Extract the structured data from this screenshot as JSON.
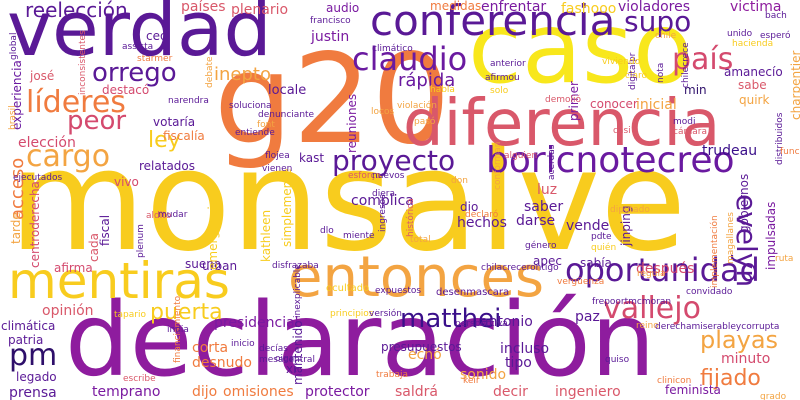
{
  "words": [
    {
      "text": "monsalve",
      "color": "#F8CC1E"
    },
    {
      "text": "declaración",
      "color": "#8E1C9E"
    },
    {
      "text": "g20",
      "color": "#F07B3F"
    },
    {
      "text": "caso",
      "color": "#F8E71C"
    },
    {
      "text": "verdad",
      "color": "#5A1996"
    },
    {
      "text": "diferencia",
      "color": "#D9586A"
    },
    {
      "text": "entonces",
      "color": "#F3A442"
    },
    {
      "text": "conferencia",
      "color": "#5A1996"
    },
    {
      "text": "mentiras",
      "color": "#F8CC1E"
    },
    {
      "text": "boricnotecreo",
      "color": "#6A1AA0"
    },
    {
      "text": "oportunidad",
      "color": "#5A1996"
    },
    {
      "text": "vallejo",
      "color": "#D44A6E"
    },
    {
      "text": "claudio",
      "color": "#6A1AA0"
    },
    {
      "text": "proyecto",
      "color": "#5A1996"
    },
    {
      "text": "líderes",
      "color": "#F07B3F"
    },
    {
      "text": "cargo",
      "color": "#F3A442"
    },
    {
      "text": "país",
      "color": "#D44A6E"
    },
    {
      "text": "orrego",
      "color": "#5A1996"
    },
    {
      "text": "peor",
      "color": "#D44A6E"
    },
    {
      "text": "supo",
      "color": "#5A1996"
    },
    {
      "text": "matthei",
      "color": "#3A0F8A"
    },
    {
      "text": "evelyn",
      "color": "#5A1996"
    },
    {
      "text": "puerta",
      "color": "#F8CC1E"
    },
    {
      "text": "playas",
      "color": "#F3A442"
    },
    {
      "text": "pm",
      "color": "#2E0F6A"
    },
    {
      "text": "ley",
      "color": "#F8CC1E"
    },
    {
      "text": "fijado",
      "color": "#F07B3F"
    },
    {
      "text": "reelección",
      "color": "#5A1996"
    },
    {
      "text": "rápida",
      "color": "#6A1AA0"
    },
    {
      "text": "inepto",
      "color": "#F3A442"
    },
    {
      "text": "acceso",
      "color": "#F07B3F"
    },
    {
      "text": "países",
      "color": "#D9586A"
    },
    {
      "text": "plenario",
      "color": "#D9586A"
    },
    {
      "text": "audio",
      "color": "#7A1AA0"
    },
    {
      "text": "enfrentar",
      "color": "#7A1AA0"
    },
    {
      "text": "fashooo",
      "color": "#F8CC1E"
    },
    {
      "text": "violadores",
      "color": "#7A1AA0"
    },
    {
      "text": "victima",
      "color": "#8E1C9E"
    },
    {
      "text": "justin",
      "color": "#7A1AA0"
    },
    {
      "text": "medidas",
      "color": "#F07B3F"
    },
    {
      "text": "ceo",
      "color": "#5A1996"
    },
    {
      "text": "josé",
      "color": "#D9586A"
    },
    {
      "text": "experiencia",
      "color": "#6A1AA0"
    },
    {
      "text": "destacó",
      "color": "#D44A6E"
    },
    {
      "text": "votaría",
      "color": "#5A1996"
    },
    {
      "text": "fiscalía",
      "color": "#F07B3F"
    },
    {
      "text": "locale",
      "color": "#5A1996"
    },
    {
      "text": "reuniones",
      "color": "#7A1AA0"
    },
    {
      "text": "primer",
      "color": "#7A1AA0"
    },
    {
      "text": "conocer",
      "color": "#D44A6E"
    },
    {
      "text": "inicial",
      "color": "#F3A442"
    },
    {
      "text": "min",
      "color": "#2E0F6A"
    },
    {
      "text": "sabe",
      "color": "#D9586A"
    },
    {
      "text": "quirk",
      "color": "#F3A442"
    },
    {
      "text": "amanecío",
      "color": "#5A1996"
    },
    {
      "text": "trudeau",
      "color": "#3A0F8A"
    },
    {
      "text": "elección",
      "color": "#D44A6E"
    },
    {
      "text": "kast",
      "color": "#5A1996"
    },
    {
      "text": "relatados",
      "color": "#5A1996"
    },
    {
      "text": "vivo",
      "color": "#D44A6E"
    },
    {
      "text": "fiscal",
      "color": "#5A1996"
    },
    {
      "text": "complica",
      "color": "#5A1996"
    },
    {
      "text": "dio",
      "color": "#5A1996"
    },
    {
      "text": "hechos",
      "color": "#5A1996"
    },
    {
      "text": "darse",
      "color": "#5A1996"
    },
    {
      "text": "saber",
      "color": "#5A1996"
    },
    {
      "text": "luz",
      "color": "#D9586A"
    },
    {
      "text": "vende",
      "color": "#5A1996"
    },
    {
      "text": "jinping",
      "color": "#5A1996"
    },
    {
      "text": "gobiernos",
      "color": "#5A1996"
    },
    {
      "text": "impulsadas",
      "color": "#7A1AA0"
    },
    {
      "text": "centroderecha",
      "color": "#D44A6E"
    },
    {
      "text": "tarde",
      "color": "#F3A442"
    },
    {
      "text": "cada",
      "color": "#D9586A"
    },
    {
      "text": "afirma",
      "color": "#D44A6E"
    },
    {
      "text": "suena",
      "color": "#5A1996"
    },
    {
      "text": "urban",
      "color": "#5A1996"
    },
    {
      "text": "kathleen",
      "color": "#F8CC1E"
    },
    {
      "text": "simplemente",
      "color": "#F8CC1E"
    },
    {
      "text": "emergencia",
      "color": "#F8CC1E"
    },
    {
      "text": "sabía",
      "color": "#5A1996"
    },
    {
      "text": "después",
      "color": "#D44A6E"
    },
    {
      "text": "apec",
      "color": "#5A1996"
    },
    {
      "text": "opinión",
      "color": "#D9586A"
    },
    {
      "text": "presidencial",
      "color": "#7A1AA0"
    },
    {
      "text": "antonio",
      "color": "#5A1996"
    },
    {
      "text": "paz",
      "color": "#5A1996"
    },
    {
      "text": "climática",
      "color": "#5A1996"
    },
    {
      "text": "patria",
      "color": "#5A1996"
    },
    {
      "text": "corta",
      "color": "#F07B3F"
    },
    {
      "text": "incluso",
      "color": "#5A1996"
    },
    {
      "text": "tipo",
      "color": "#5A1996"
    },
    {
      "text": "legado",
      "color": "#5A1996"
    },
    {
      "text": "desnudo",
      "color": "#F07B3F"
    },
    {
      "text": "echó",
      "color": "#F3A442"
    },
    {
      "text": "sonido",
      "color": "#F3A442"
    },
    {
      "text": "minuto",
      "color": "#D44A6E"
    },
    {
      "text": "prensa",
      "color": "#5A1996"
    },
    {
      "text": "temprano",
      "color": "#7A1AA0"
    },
    {
      "text": "dijo",
      "color": "#F07B3F"
    },
    {
      "text": "omisiones",
      "color": "#F07B3F"
    },
    {
      "text": "protector",
      "color": "#7A1AA0"
    },
    {
      "text": "saldrá",
      "color": "#D9586A"
    },
    {
      "text": "decir",
      "color": "#D9586A"
    },
    {
      "text": "ingeniero",
      "color": "#D9586A"
    },
    {
      "text": "feminista",
      "color": "#7A1AA0"
    },
    {
      "text": "mantenido",
      "color": "#5A1996"
    },
    {
      "text": "xi",
      "color": "#5A1996"
    },
    {
      "text": "presupuestos",
      "color": "#5A1996"
    },
    {
      "text": "desenmascara",
      "color": "#5A1996"
    },
    {
      "text": "ocultado",
      "color": "#F8CC1E"
    },
    {
      "text": "francisco",
      "color": "#5A1996"
    },
    {
      "text": "anterior",
      "color": "#5A1996"
    },
    {
      "text": "afirmou",
      "color": "#5A1996"
    },
    {
      "text": "solo",
      "color": "#F8CC1E"
    },
    {
      "text": "claro",
      "color": "#F8CC1E"
    },
    {
      "text": "quiso",
      "color": "#5A1996"
    },
    {
      "text": "reino",
      "color": "#F3A442"
    },
    {
      "text": "diputado",
      "color": "#F3A442"
    },
    {
      "text": "pdte",
      "color": "#5A1996"
    },
    {
      "text": "frepoortmcmoran",
      "color": "#5A1996"
    },
    {
      "text": "derechamiserableycorrupta",
      "color": "#5A1996"
    },
    {
      "text": "convidado",
      "color": "#5A1996"
    },
    {
      "text": "unido",
      "color": "#5A1996"
    },
    {
      "text": "charpentier",
      "color": "#F3A442"
    },
    {
      "text": "digitalpr",
      "color": "#5A1996"
    },
    {
      "text": "nota",
      "color": "#5A1996"
    },
    {
      "text": "modi",
      "color": "#5A1996"
    },
    {
      "text": "cámara",
      "color": "#D9586A"
    },
    {
      "text": "casi",
      "color": "#D9586A"
    },
    {
      "text": "inconsistentes",
      "color": "#D9586A"
    },
    {
      "text": "assista",
      "color": "#5A1996"
    },
    {
      "text": "narendra",
      "color": "#5A1996"
    },
    {
      "text": "soluciona",
      "color": "#5A1996"
    },
    {
      "text": "entiende",
      "color": "#5A1996"
    },
    {
      "text": "font",
      "color": "#F3A442"
    },
    {
      "text": "flojea",
      "color": "#5A1996"
    },
    {
      "text": "esforço",
      "color": "#D9586A"
    },
    {
      "text": "nuevos",
      "color": "#5A1996"
    },
    {
      "text": "alguien",
      "color": "#D9586A"
    },
    {
      "text": "ejecutados",
      "color": "#5A1996"
    },
    {
      "text": "aldito",
      "color": "#D9586A"
    },
    {
      "text": "disfrazaba",
      "color": "#5A1996"
    },
    {
      "text": "expuestos",
      "color": "#5A1996"
    },
    {
      "text": "decías",
      "color": "#5A1996"
    },
    {
      "text": "mesacentral",
      "color": "#5A1996"
    },
    {
      "text": "trabaja",
      "color": "#F07B3F"
    },
    {
      "text": "ingresos",
      "color": "#5A1996"
    },
    {
      "text": "total",
      "color": "#F3A442"
    },
    {
      "text": "histórica",
      "color": "#D9586A"
    },
    {
      "text": "mudar",
      "color": "#5A1996"
    },
    {
      "text": "vienen",
      "color": "#5A1996"
    },
    {
      "text": "declaró",
      "color": "#F07B3F"
    },
    {
      "text": "conforman",
      "color": "#F3A442"
    },
    {
      "text": "acerdas",
      "color": "#5A1996"
    },
    {
      "text": "demolió",
      "color": "#D9586A"
    },
    {
      "text": "global",
      "color": "#5A1996"
    },
    {
      "text": "brasil",
      "color": "#F3A442"
    },
    {
      "text": "debate",
      "color": "#F3A442"
    },
    {
      "text": "regula",
      "color": "#F3A442"
    },
    {
      "text": "grado",
      "color": "#F3A442"
    },
    {
      "text": "ruta",
      "color": "#F3A442"
    },
    {
      "text": "escribe",
      "color": "#D9586A"
    },
    {
      "text": "inicio",
      "color": "#5A1996"
    },
    {
      "text": "financiamiento",
      "color": "#F07B3F"
    },
    {
      "text": "tapario",
      "color": "#F8CC1E"
    },
    {
      "text": "inexplicable",
      "color": "#5A1996"
    },
    {
      "text": "principios",
      "color": "#F8CC1E"
    },
    {
      "text": "versión",
      "color": "#5A1996"
    },
    {
      "text": "chilacrecerontigo",
      "color": "#5A1996"
    },
    {
      "text": "perspectiva",
      "color": "#5A1996"
    },
    {
      "text": "oiga",
      "color": "#5A1996"
    },
    {
      "text": "keir",
      "color": "#F07B3F"
    },
    {
      "text": "quién",
      "color": "#F8CC1E"
    },
    {
      "text": "clinicon",
      "color": "#F07B3F"
    },
    {
      "text": "plenum",
      "color": "#5A1996"
    },
    {
      "text": "implementación",
      "color": "#F07B3F"
    },
    {
      "text": "magallanes",
      "color": "#F3A442"
    },
    {
      "text": "distribuidos",
      "color": "#5A1996"
    },
    {
      "text": "bach",
      "color": "#5A1996"
    },
    {
      "text": "hacienda",
      "color": "#F8CC1E"
    },
    {
      "text": "chilecrece",
      "color": "#5A1996"
    },
    {
      "text": "esperó",
      "color": "#5A1996"
    },
    {
      "text": "habla",
      "color": "#F8CC1E"
    },
    {
      "text": "locos",
      "color": "#F3A442"
    },
    {
      "text": "pasó",
      "color": "#F3A442"
    },
    {
      "text": "denunciante",
      "color": "#5A1996"
    },
    {
      "text": "starmer",
      "color": "#F07B3F"
    },
    {
      "text": "funcionaria",
      "color": "#F07B3F"
    },
    {
      "text": "miente",
      "color": "#5A1996"
    },
    {
      "text": "género",
      "color": "#5A1996"
    },
    {
      "text": "vergüenza",
      "color": "#F07B3F"
    },
    {
      "text": "diera",
      "color": "#5A1996"
    },
    {
      "text": "don",
      "color": "#F3A442"
    },
    {
      "text": "climático",
      "color": "#5A1996"
    },
    {
      "text": "chile",
      "color": "#F3A442"
    },
    {
      "text": "india",
      "color": "#5A1996"
    },
    {
      "text": "viviendo",
      "color": "#F8CC1E"
    },
    {
      "text": "violación",
      "color": "#F3A442"
    },
    {
      "text": "dlo",
      "color": "#5A1996"
    }
  ]
}
